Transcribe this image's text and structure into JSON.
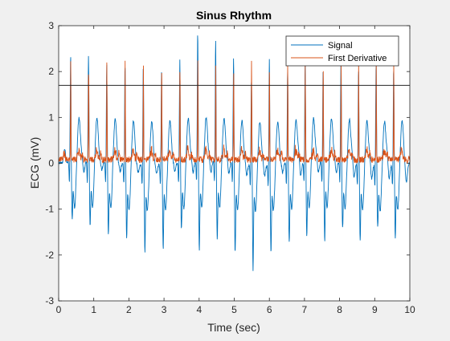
{
  "chart_data": {
    "type": "line",
    "title": "Sinus Rhythm",
    "xlabel": "Time (sec)",
    "ylabel": "ECG (mV)",
    "xlim": [
      0,
      10
    ],
    "ylim": [
      -3,
      3
    ],
    "xticks": [
      "0",
      "1",
      "2",
      "3",
      "4",
      "5",
      "6",
      "7",
      "8",
      "9",
      "10"
    ],
    "yticks": [
      "-3",
      "-2",
      "-1",
      "0",
      "1",
      "2",
      "3"
    ],
    "grid": false,
    "legend_position": "top-right",
    "threshold_line": {
      "y": 1.7,
      "color": "#262626"
    },
    "beat_times": [
      0.34,
      0.85,
      1.37,
      1.89,
      2.41,
      2.93,
      3.45,
      3.96,
      4.47,
      4.98,
      5.49,
      6.0,
      6.52,
      7.02,
      7.53,
      8.04,
      8.54,
      9.04,
      9.54
    ],
    "series": [
      {
        "name": "Signal",
        "color": "#0072BD",
        "r_peaks": [
          2.38,
          2.28,
          2.15,
          2.2,
          2.2,
          2.05,
          2.25,
          2.83,
          2.65,
          2.3,
          1.9,
          2.3,
          2.1,
          2.2,
          2.0,
          2.3,
          2.1,
          2.25,
          2.15
        ],
        "s_troughs": [
          -1.1,
          -1.28,
          -1.45,
          -1.5,
          -1.78,
          -1.7,
          -1.3,
          -1.8,
          -1.55,
          -1.8,
          -2.15,
          -1.8,
          -1.6,
          -1.5,
          -1.6,
          -1.3,
          -1.55,
          -1.2,
          -1.5
        ]
      },
      {
        "name": "First Derivative",
        "color": "#D95319",
        "peak_value": 2.15
      }
    ]
  }
}
